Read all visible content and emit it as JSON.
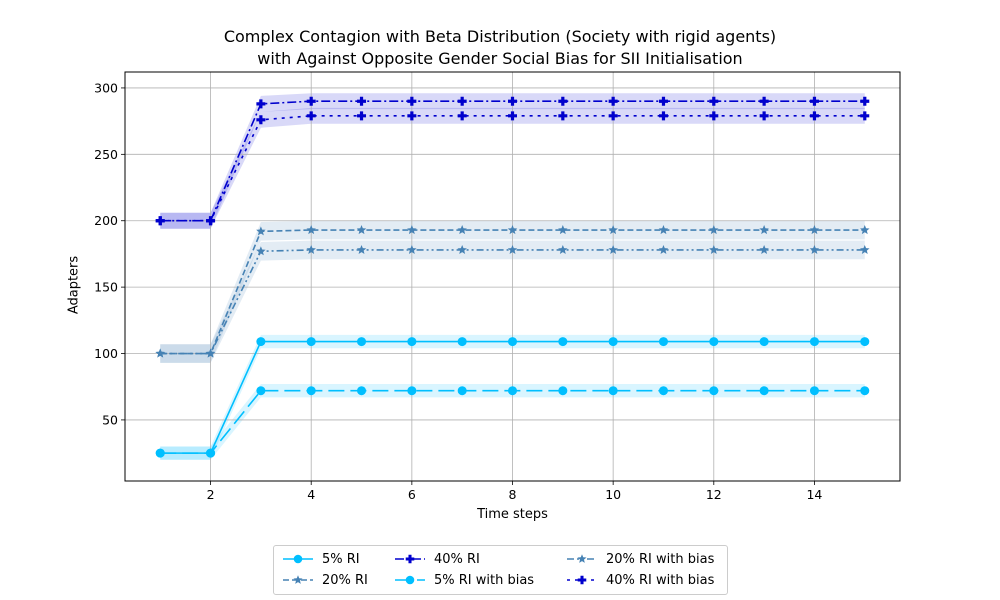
{
  "chart_data": {
    "type": "line",
    "title_line1": "Complex Contagion with Beta Distribution (Society with rigid agents)",
    "title_line2": "with Against Opposite Gender Social Bias for SII Initialisation",
    "xlabel": "Time steps",
    "ylabel": "Adapters",
    "xlim": [
      0.3,
      15.7
    ],
    "ylim": [
      4,
      312
    ],
    "xticks": [
      2,
      4,
      6,
      8,
      10,
      12,
      14
    ],
    "yticks": [
      50,
      100,
      150,
      200,
      250,
      300
    ],
    "grid": true,
    "legend_position": "below plot, center",
    "x": [
      1,
      2,
      3,
      4,
      5,
      6,
      7,
      8,
      9,
      10,
      11,
      12,
      13,
      14,
      15
    ],
    "series": [
      {
        "name": "5% RI",
        "color": "#00bfff",
        "dash": "",
        "marker": "circle",
        "values": [
          25,
          25,
          109,
          109,
          109,
          109,
          109,
          109,
          109,
          109,
          109,
          109,
          109,
          109,
          109
        ],
        "band": 5
      },
      {
        "name": "20% RI",
        "color": "#4682b4",
        "dash": "6 3",
        "marker": "star",
        "values": [
          100,
          100,
          192,
          193,
          193,
          193,
          193,
          193,
          193,
          193,
          193,
          193,
          193,
          193,
          193
        ],
        "band": 7
      },
      {
        "name": "40% RI",
        "color": "#0000cd",
        "dash": "9 3 2 3",
        "marker": "plus",
        "values": [
          200,
          200,
          288,
          290,
          290,
          290,
          290,
          290,
          290,
          290,
          290,
          290,
          290,
          290,
          290
        ],
        "band": 6
      },
      {
        "name": "5% RI with bias",
        "color": "#00bfff",
        "dash": "16 6",
        "marker": "circle",
        "values": [
          25,
          25,
          72,
          72,
          72,
          72,
          72,
          72,
          72,
          72,
          72,
          72,
          72,
          72,
          72
        ],
        "band": 5
      },
      {
        "name": "20% RI with bias",
        "color": "#4682b4",
        "dash": "7 3 2 3 2 3",
        "marker": "star",
        "values": [
          100,
          100,
          177,
          178,
          178,
          178,
          178,
          178,
          178,
          178,
          178,
          178,
          178,
          178,
          178
        ],
        "band": 7
      },
      {
        "name": "40% RI with bias",
        "color": "#0000cd",
        "dash": "3 5",
        "marker": "plus",
        "values": [
          200,
          200,
          276,
          279,
          279,
          279,
          279,
          279,
          279,
          279,
          279,
          279,
          279,
          279,
          279
        ],
        "band": 6
      }
    ]
  }
}
